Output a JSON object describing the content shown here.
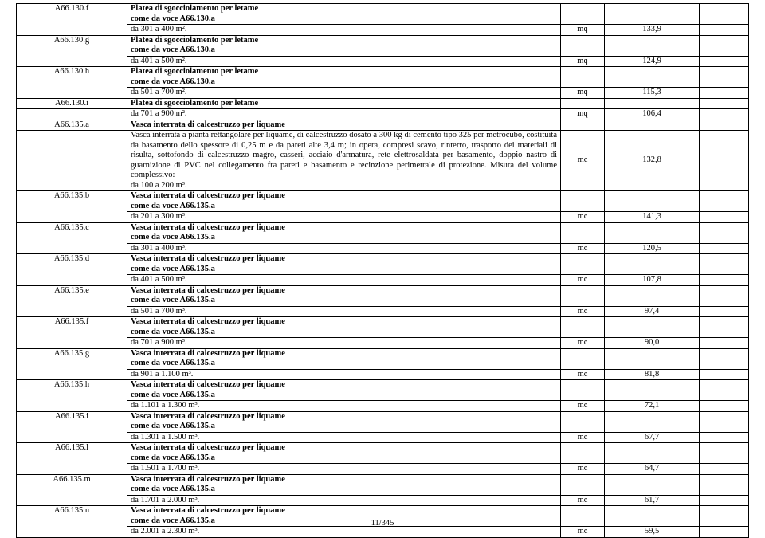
{
  "page_number": "11/345",
  "labels": {
    "platea_title": "Platea di sgocciolamento per letame",
    "come_da_130": "come da voce A66.130.a",
    "vasca_title": "Vasca interrata di calcestruzzo per liquame",
    "come_da_135": "come da voce A66.135.a"
  },
  "long_desc": "Vasca interrata a pianta rettangolare per liquame, di calcestruzzo dosato a 300 kg di cemento tipo 325 per metrocubo, costituita da basamento dello spessore di 0,25 m e da pareti alte 3,4 m; in opera, compresi scavo, rinterro, trasporto dei materiali di risulta, sottofondo di calcestruzzo magro, casseri, acciaio d'armatura, rete elettrosaldata per basamento, doppio nastro di guarnizione di PVC nel collegamento fra pareti e basamento e recinzione perimetrale di protezione. Misura del volume complessivo:",
  "long_desc_range": "da 100 a 200 m³.",
  "rows": [
    {
      "code": "A66.130.f",
      "r": "da 301 a 400 m².",
      "u": "mq",
      "v": "133,9",
      "t": "platea"
    },
    {
      "code": "A66.130.g",
      "r": "da 401 a 500 m².",
      "u": "mq",
      "v": "124,9",
      "t": "platea"
    },
    {
      "code": "A66.130.h",
      "r": "da 501 a 700 m².",
      "u": "mq",
      "v": "115,3",
      "t": "platea"
    },
    {
      "code": "A66.130.i",
      "r": "da 701 a 900 m².",
      "u": "mq",
      "v": "106,4",
      "t": "platea_simple"
    },
    {
      "code": "A66.135.a",
      "r": "",
      "u": "mc",
      "v": "132,8",
      "t": "vasca_long"
    },
    {
      "code": "A66.135.b",
      "r": "da 201 a 300 m³.",
      "u": "mc",
      "v": "141,3",
      "t": "vasca"
    },
    {
      "code": "A66.135.c",
      "r": "da 301 a 400 m³.",
      "u": "mc",
      "v": "120,5",
      "t": "vasca"
    },
    {
      "code": "A66.135.d",
      "r": "da 401 a 500 m³.",
      "u": "mc",
      "v": "107,8",
      "t": "vasca"
    },
    {
      "code": "A66.135.e",
      "r": "da 501 a 700 m³.",
      "u": "mc",
      "v": "97,4",
      "t": "vasca"
    },
    {
      "code": "A66.135.f",
      "r": "da 701 a 900 m³.",
      "u": "mc",
      "v": "90,0",
      "t": "vasca"
    },
    {
      "code": "A66.135.g",
      "r": "da 901 a 1.100 m³.",
      "u": "mc",
      "v": "81,8",
      "t": "vasca"
    },
    {
      "code": "A66.135.h",
      "r": "da 1.101 a 1.300 m³.",
      "u": "mc",
      "v": "72,1",
      "t": "vasca"
    },
    {
      "code": "A66.135.i",
      "r": "da 1.301 a 1.500 m³.",
      "u": "mc",
      "v": "67,7",
      "t": "vasca"
    },
    {
      "code": "A66.135.l",
      "r": "da 1.501 a 1.700 m³.",
      "u": "mc",
      "v": "64,7",
      "t": "vasca"
    },
    {
      "code": "A66.135.m",
      "r": "da 1.701 a 2.000 m³.",
      "u": "mc",
      "v": "61,7",
      "t": "vasca"
    },
    {
      "code": "A66.135.n",
      "r": "da 2.001 a 2.300 m³.",
      "u": "mc",
      "v": "59,5",
      "t": "vasca"
    }
  ]
}
